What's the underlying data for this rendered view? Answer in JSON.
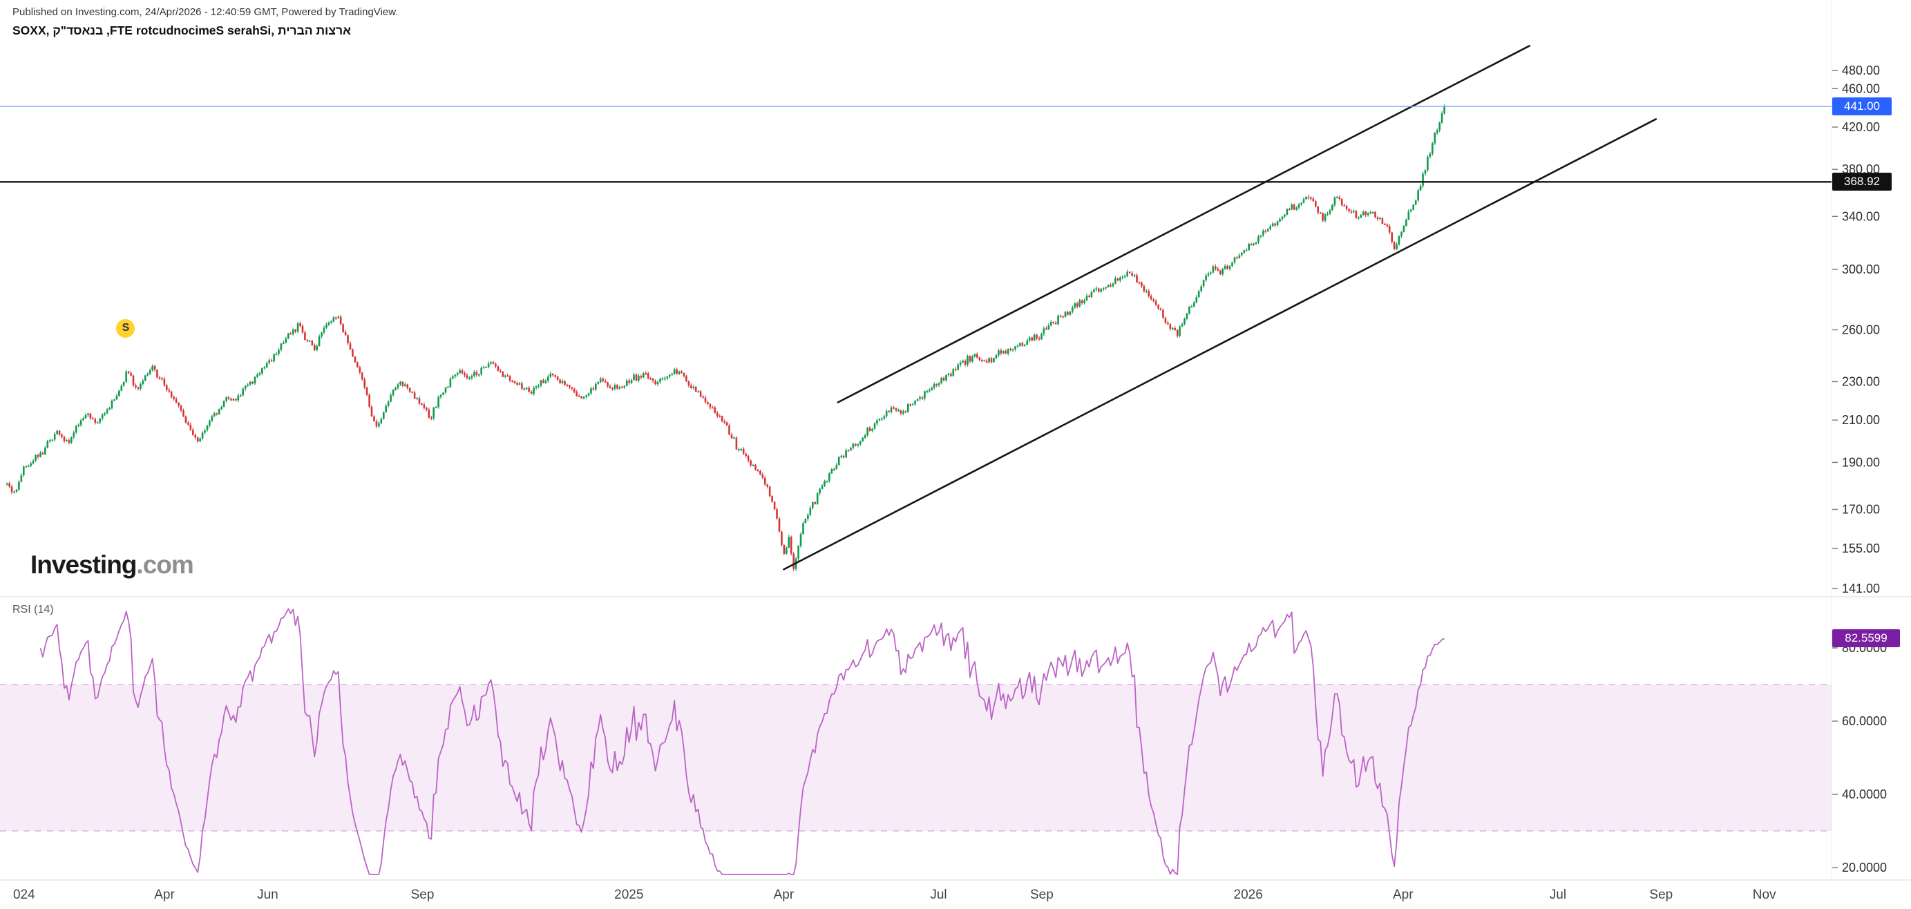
{
  "header": {
    "published_line": "Published on Investing.com, 24/Apr/2026 - 12:40:59 GMT, Powered by TradingView.",
    "symbol_line": "SOXX, ק\"דסאנב ,FTE rotcudnocimeS serahSi, תירבה תוצרא"
  },
  "watermark": {
    "brand": "Investing",
    "suffix": ".com"
  },
  "rsi_panel": {
    "title": "RSI (14)"
  },
  "badges": {
    "last_price": "441.00",
    "level": "368.92",
    "rsi": "82.5599"
  },
  "marker": {
    "label": "S",
    "t": 2.25,
    "price": 261,
    "color": "#ffd22e"
  },
  "chart_data": {
    "type": "candlestick",
    "symbol": "SOXX",
    "x_unit": "months_since_2024_01",
    "last_price": 441.0,
    "level_line": 368.92,
    "rsi_period": 14,
    "rsi_last": 82.5599,
    "rsi_bands": {
      "upper": 70,
      "lower": 30
    },
    "t_start": -0.05,
    "t_end": 27.8,
    "candles_per_month": 21.7,
    "price_ticks": [
      {
        "label": "480.00",
        "v": 480
      },
      {
        "label": "460.00",
        "v": 460
      },
      {
        "label": "420.00",
        "v": 420
      },
      {
        "label": "380.00",
        "v": 380
      },
      {
        "label": "340.00",
        "v": 340
      },
      {
        "label": "300.00",
        "v": 300
      },
      {
        "label": "260.00",
        "v": 260
      },
      {
        "label": "230.00",
        "v": 230
      },
      {
        "label": "210.00",
        "v": 210
      },
      {
        "label": "190.00",
        "v": 190
      },
      {
        "label": "170.00",
        "v": 170
      },
      {
        "label": "155.00",
        "v": 155
      },
      {
        "label": "141.00",
        "v": 141
      }
    ],
    "rsi_ticks": [
      {
        "label": "80.0000",
        "v": 80
      },
      {
        "label": "60.0000",
        "v": 60
      },
      {
        "label": "40.0000",
        "v": 40
      },
      {
        "label": "20.0000",
        "v": 20
      }
    ],
    "time_labels": [
      {
        "label": "024",
        "t": 0.28
      },
      {
        "label": "Apr",
        "t": 3
      },
      {
        "label": "Jun",
        "t": 5
      },
      {
        "label": "Sep",
        "t": 8
      },
      {
        "label": "2025",
        "t": 12
      },
      {
        "label": "Apr",
        "t": 15
      },
      {
        "label": "Jul",
        "t": 18
      },
      {
        "label": "Sep",
        "t": 20
      },
      {
        "label": "2026",
        "t": 24
      },
      {
        "label": "Apr",
        "t": 27
      },
      {
        "label": "Jul",
        "t": 30
      },
      {
        "label": "Sep",
        "t": 32
      },
      {
        "label": "Nov",
        "t": 34
      }
    ],
    "trendlines": [
      {
        "t1": 16.05,
        "p1": 219,
        "t2": 29.45,
        "p2": 509
      },
      {
        "t1": 15.0,
        "p1": 147.5,
        "t2": 31.9,
        "p2": 428
      }
    ],
    "anchors": [
      [
        -0.05,
        180
      ],
      [
        0.1,
        176
      ],
      [
        0.3,
        188
      ],
      [
        0.5,
        192
      ],
      [
        0.7,
        197
      ],
      [
        0.9,
        205
      ],
      [
        1.1,
        199
      ],
      [
        1.3,
        206
      ],
      [
        1.5,
        213
      ],
      [
        1.7,
        208
      ],
      [
        1.9,
        216
      ],
      [
        2.1,
        224
      ],
      [
        2.3,
        236
      ],
      [
        2.45,
        226
      ],
      [
        2.6,
        232
      ],
      [
        2.75,
        239
      ],
      [
        2.9,
        232
      ],
      [
        3.1,
        224
      ],
      [
        3.3,
        216
      ],
      [
        3.5,
        205
      ],
      [
        3.65,
        199
      ],
      [
        3.8,
        207
      ],
      [
        4.0,
        214
      ],
      [
        4.2,
        222
      ],
      [
        4.4,
        220
      ],
      [
        4.6,
        228
      ],
      [
        4.8,
        234
      ],
      [
        5.0,
        241
      ],
      [
        5.2,
        248
      ],
      [
        5.45,
        258
      ],
      [
        5.6,
        263
      ],
      [
        5.75,
        254
      ],
      [
        5.9,
        249
      ],
      [
        6.05,
        257
      ],
      [
        6.2,
        264
      ],
      [
        6.35,
        268
      ],
      [
        6.5,
        256
      ],
      [
        6.65,
        244
      ],
      [
        6.8,
        234
      ],
      [
        6.95,
        220
      ],
      [
        7.1,
        205
      ],
      [
        7.25,
        214
      ],
      [
        7.4,
        223
      ],
      [
        7.55,
        231
      ],
      [
        7.7,
        227
      ],
      [
        7.85,
        222
      ],
      [
        8.0,
        217
      ],
      [
        8.15,
        211
      ],
      [
        8.3,
        221
      ],
      [
        8.5,
        229
      ],
      [
        8.7,
        236
      ],
      [
        8.9,
        231
      ],
      [
        9.1,
        236
      ],
      [
        9.3,
        241
      ],
      [
        9.5,
        236
      ],
      [
        9.7,
        231
      ],
      [
        9.9,
        227
      ],
      [
        10.1,
        224
      ],
      [
        10.3,
        229
      ],
      [
        10.5,
        234
      ],
      [
        10.7,
        229
      ],
      [
        10.9,
        225
      ],
      [
        11.1,
        221
      ],
      [
        11.3,
        227
      ],
      [
        11.5,
        231
      ],
      [
        11.7,
        226
      ],
      [
        11.9,
        229
      ],
      [
        12.1,
        232
      ],
      [
        12.3,
        235
      ],
      [
        12.5,
        229
      ],
      [
        12.7,
        233
      ],
      [
        12.9,
        237
      ],
      [
        13.1,
        231
      ],
      [
        13.3,
        225
      ],
      [
        13.5,
        219
      ],
      [
        13.7,
        212
      ],
      [
        13.9,
        206
      ],
      [
        14.1,
        197
      ],
      [
        14.3,
        192
      ],
      [
        14.5,
        186
      ],
      [
        14.7,
        178
      ],
      [
        14.85,
        168
      ],
      [
        15.0,
        152
      ],
      [
        15.1,
        158
      ],
      [
        15.2,
        147
      ],
      [
        15.35,
        163
      ],
      [
        15.5,
        170
      ],
      [
        15.65,
        175
      ],
      [
        15.8,
        181
      ],
      [
        15.95,
        187
      ],
      [
        16.1,
        193
      ],
      [
        16.3,
        196
      ],
      [
        16.5,
        201
      ],
      [
        16.7,
        207
      ],
      [
        16.9,
        212
      ],
      [
        17.1,
        217
      ],
      [
        17.3,
        214
      ],
      [
        17.5,
        219
      ],
      [
        17.7,
        222
      ],
      [
        17.9,
        228
      ],
      [
        18.1,
        232
      ],
      [
        18.3,
        237
      ],
      [
        18.5,
        241
      ],
      [
        18.7,
        245
      ],
      [
        18.9,
        240
      ],
      [
        19.1,
        244
      ],
      [
        19.3,
        248
      ],
      [
        19.5,
        249
      ],
      [
        19.7,
        252
      ],
      [
        19.9,
        255
      ],
      [
        20.1,
        260
      ],
      [
        20.3,
        266
      ],
      [
        20.5,
        271
      ],
      [
        20.7,
        276
      ],
      [
        20.9,
        281
      ],
      [
        21.1,
        285
      ],
      [
        21.3,
        289
      ],
      [
        21.5,
        294
      ],
      [
        21.7,
        298
      ],
      [
        21.9,
        291
      ],
      [
        22.1,
        281
      ],
      [
        22.3,
        272
      ],
      [
        22.45,
        264
      ],
      [
        22.6,
        257
      ],
      [
        22.75,
        267
      ],
      [
        22.9,
        275
      ],
      [
        23.05,
        285
      ],
      [
        23.2,
        294
      ],
      [
        23.35,
        303
      ],
      [
        23.5,
        297
      ],
      [
        23.65,
        304
      ],
      [
        23.8,
        310
      ],
      [
        24.0,
        316
      ],
      [
        24.2,
        324
      ],
      [
        24.4,
        332
      ],
      [
        24.6,
        339
      ],
      [
        24.8,
        345
      ],
      [
        25.0,
        351
      ],
      [
        25.2,
        356
      ],
      [
        25.35,
        344
      ],
      [
        25.45,
        338
      ],
      [
        25.6,
        348
      ],
      [
        25.7,
        358
      ],
      [
        25.85,
        350
      ],
      [
        26.0,
        344
      ],
      [
        26.1,
        339
      ],
      [
        26.25,
        344
      ],
      [
        26.4,
        341
      ],
      [
        26.55,
        338
      ],
      [
        26.7,
        330
      ],
      [
        26.85,
        312
      ],
      [
        26.95,
        328
      ],
      [
        27.05,
        338
      ],
      [
        27.15,
        345
      ],
      [
        27.25,
        355
      ],
      [
        27.38,
        372
      ],
      [
        27.5,
        392
      ],
      [
        27.6,
        408
      ],
      [
        27.7,
        425
      ],
      [
        27.8,
        441
      ]
    ],
    "colors": {
      "up": "#0d9b4c",
      "down": "#d63434",
      "rsi_line": "#bb64c5",
      "rsi_band_fill": "rgba(187,100,197,0.13)",
      "rsi_band_edge": "rgba(187,100,197,0.55)",
      "trend": "#161616",
      "level_line": "#141414",
      "last_price_line": "#7aa9e0",
      "last_price_bg": "#2962ff",
      "level_bg": "#111111",
      "rsi_bg": "#7b1fa2"
    }
  }
}
